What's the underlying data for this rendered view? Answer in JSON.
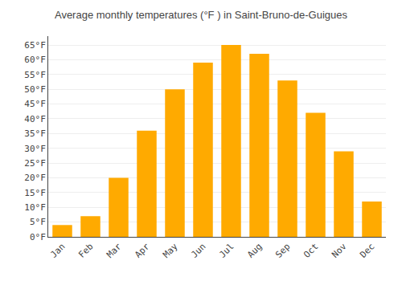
{
  "chart_data": {
    "type": "bar",
    "title": "Average monthly temperatures (°F ) in Saint-Bruno-de-Guigues",
    "categories": [
      "Jan",
      "Feb",
      "Mar",
      "Apr",
      "May",
      "Jun",
      "Jul",
      "Aug",
      "Sep",
      "Oct",
      "Nov",
      "Dec"
    ],
    "values": [
      4,
      7,
      20,
      36,
      50,
      59,
      65,
      62,
      53,
      42,
      29,
      12
    ],
    "color": "#FFAA00",
    "ylim": [
      0,
      68
    ],
    "yticks": [
      {
        "value": 0,
        "label": "0°F"
      },
      {
        "value": 5,
        "label": "5°F"
      },
      {
        "value": 10,
        "label": "10°F"
      },
      {
        "value": 15,
        "label": "15°F"
      },
      {
        "value": 20,
        "label": "20°F"
      },
      {
        "value": 25,
        "label": "25°F"
      },
      {
        "value": 30,
        "label": "30°F"
      },
      {
        "value": 35,
        "label": "35°F"
      },
      {
        "value": 40,
        "label": "40°F"
      },
      {
        "value": 45,
        "label": "45°F"
      },
      {
        "value": 50,
        "label": "50°F"
      },
      {
        "value": 55,
        "label": "55°F"
      },
      {
        "value": 60,
        "label": "60°F"
      },
      {
        "value": 65,
        "label": "65°F"
      }
    ],
    "grid": true
  }
}
